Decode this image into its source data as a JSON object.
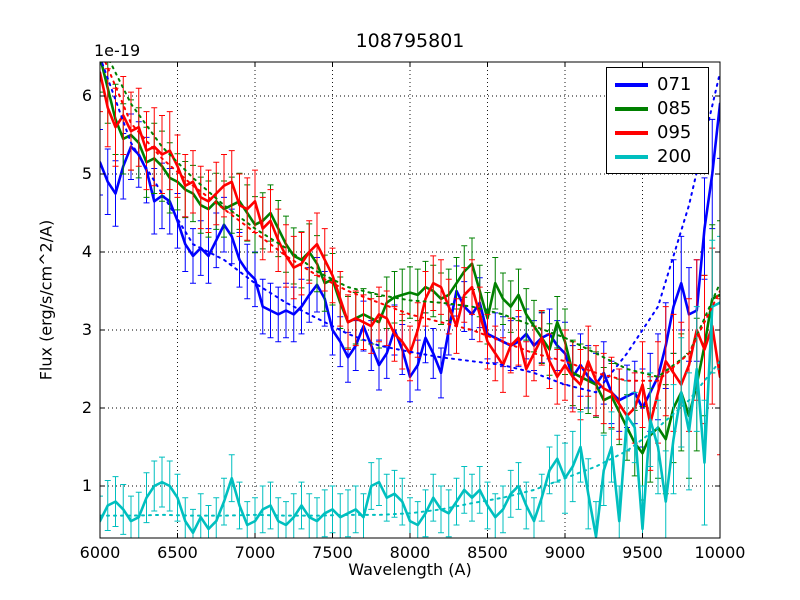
{
  "chart_data": {
    "type": "line",
    "title": "108795801",
    "xlabel": "Wavelength (A)",
    "ylabel": "Flux (erg/s/cm^2/A)",
    "y_offset_text": "1e-19",
    "xlim": [
      6000,
      10000
    ],
    "ylim": [
      0.33,
      6.44
    ],
    "xticks": [
      6000,
      6500,
      7000,
      7500,
      8000,
      8500,
      9000,
      9500,
      10000
    ],
    "yticks": [
      1,
      2,
      3,
      4,
      5,
      6
    ],
    "grid": true,
    "grid_style": "dotted",
    "legend_position": "upper right",
    "x": [
      6000,
      6050,
      6100,
      6150,
      6200,
      6250,
      6300,
      6350,
      6400,
      6450,
      6500,
      6550,
      6600,
      6650,
      6700,
      6750,
      6800,
      6850,
      6900,
      6950,
      7000,
      7050,
      7100,
      7150,
      7200,
      7250,
      7300,
      7350,
      7400,
      7450,
      7500,
      7550,
      7600,
      7650,
      7700,
      7750,
      7800,
      7850,
      7900,
      7950,
      8000,
      8050,
      8100,
      8150,
      8200,
      8250,
      8300,
      8350,
      8400,
      8450,
      8500,
      8550,
      8600,
      8650,
      8700,
      8750,
      8800,
      8850,
      8900,
      8950,
      9000,
      9050,
      9100,
      9150,
      9200,
      9250,
      9300,
      9350,
      9400,
      9450,
      9500,
      9550,
      9600,
      9650,
      9700,
      9750,
      9800,
      9850,
      9900,
      9950,
      10000
    ],
    "series": [
      {
        "name": "071",
        "color": "#0000ff",
        "values": [
          5.15,
          4.9,
          4.75,
          5.1,
          5.35,
          5.25,
          5.05,
          4.65,
          4.72,
          4.65,
          4.4,
          4.1,
          3.95,
          4.05,
          3.95,
          4.15,
          4.35,
          4.2,
          3.9,
          3.75,
          3.65,
          3.3,
          3.25,
          3.2,
          3.25,
          3.2,
          3.3,
          3.45,
          3.58,
          3.4,
          3.0,
          2.85,
          2.65,
          2.8,
          3.05,
          2.8,
          2.55,
          2.7,
          3.0,
          2.75,
          2.4,
          2.55,
          2.9,
          2.7,
          2.45,
          3.0,
          3.5,
          3.3,
          3.2,
          3.35,
          2.95,
          2.9,
          2.85,
          2.8,
          2.85,
          2.95,
          2.8,
          2.9,
          2.95,
          2.8,
          2.7,
          2.4,
          2.55,
          2.4,
          2.3,
          2.45,
          2.2,
          2.1,
          2.15,
          2.2,
          2.0,
          2.2,
          2.4,
          2.8,
          3.3,
          3.6,
          3.2,
          3.25,
          4.3,
          5.0,
          5.9
        ],
        "err": [
          0.42,
          0.42,
          0.42,
          0.42,
          0.42,
          0.42,
          0.42,
          0.42,
          0.42,
          0.42,
          0.35,
          0.35,
          0.35,
          0.35,
          0.35,
          0.35,
          0.35,
          0.35,
          0.35,
          0.35,
          0.35,
          0.35,
          0.35,
          0.35,
          0.35,
          0.35,
          0.35,
          0.35,
          0.35,
          0.35,
          0.32,
          0.32,
          0.32,
          0.32,
          0.32,
          0.32,
          0.32,
          0.32,
          0.32,
          0.32,
          0.32,
          0.32,
          0.32,
          0.32,
          0.32,
          0.32,
          0.32,
          0.32,
          0.32,
          0.32,
          0.32,
          0.32,
          0.32,
          0.32,
          0.32,
          0.32,
          0.32,
          0.32,
          0.32,
          0.32,
          0.4,
          0.4,
          0.4,
          0.4,
          0.4,
          0.4,
          0.4,
          0.4,
          0.4,
          0.4,
          0.5,
          0.5,
          0.55,
          0.55,
          0.6,
          0.6,
          0.6,
          0.65,
          0.65,
          0.7,
          0.7
        ]
      },
      {
        "name": "085",
        "color": "#008000",
        "values": [
          6.5,
          6.1,
          5.7,
          5.45,
          5.5,
          5.4,
          5.15,
          5.2,
          5.1,
          4.95,
          4.9,
          4.8,
          4.75,
          4.6,
          4.55,
          4.65,
          4.55,
          4.6,
          4.65,
          4.5,
          4.35,
          4.4,
          4.5,
          4.3,
          4.1,
          3.95,
          3.9,
          4.0,
          3.85,
          3.6,
          3.65,
          3.35,
          3.1,
          3.15,
          3.2,
          3.15,
          3.1,
          3.35,
          3.42,
          3.45,
          3.48,
          3.45,
          3.55,
          3.5,
          3.4,
          3.45,
          3.6,
          3.75,
          3.85,
          3.5,
          3.15,
          3.6,
          3.4,
          3.3,
          3.45,
          3.2,
          3.05,
          2.9,
          2.75,
          3.1,
          2.85,
          2.45,
          2.4,
          2.35,
          2.3,
          2.1,
          2.15,
          1.95,
          1.75,
          1.55,
          1.42,
          1.65,
          1.75,
          1.6,
          2.0,
          2.2,
          1.9,
          2.3,
          2.8,
          3.4,
          3.45
        ],
        "err": [
          0.45,
          0.45,
          0.45,
          0.45,
          0.45,
          0.45,
          0.45,
          0.45,
          0.45,
          0.45,
          0.36,
          0.36,
          0.36,
          0.36,
          0.36,
          0.36,
          0.36,
          0.36,
          0.36,
          0.36,
          0.36,
          0.36,
          0.36,
          0.36,
          0.36,
          0.36,
          0.36,
          0.36,
          0.36,
          0.36,
          0.33,
          0.33,
          0.33,
          0.33,
          0.33,
          0.33,
          0.33,
          0.33,
          0.33,
          0.33,
          0.33,
          0.33,
          0.33,
          0.33,
          0.33,
          0.33,
          0.33,
          0.33,
          0.33,
          0.33,
          0.33,
          0.33,
          0.33,
          0.33,
          0.33,
          0.33,
          0.33,
          0.33,
          0.33,
          0.33,
          0.42,
          0.42,
          0.42,
          0.42,
          0.42,
          0.42,
          0.42,
          0.42,
          0.42,
          0.42,
          0.6,
          0.6,
          0.65,
          0.7,
          0.7,
          0.75,
          0.8,
          0.85,
          0.9,
          0.95,
          0.95
        ]
      },
      {
        "name": "095",
        "color": "#ff0000",
        "values": [
          6.3,
          5.85,
          5.6,
          5.75,
          5.55,
          5.6,
          5.3,
          5.35,
          5.25,
          5.3,
          5.1,
          4.85,
          4.9,
          4.7,
          4.65,
          4.75,
          4.85,
          4.9,
          4.6,
          4.55,
          4.65,
          4.3,
          4.4,
          4.15,
          3.95,
          3.8,
          3.85,
          4.0,
          4.1,
          3.9,
          3.7,
          3.4,
          3.1,
          3.15,
          3.1,
          3.05,
          3.2,
          3.15,
          2.95,
          2.85,
          2.7,
          3.0,
          3.4,
          3.6,
          3.55,
          3.3,
          3.05,
          3.45,
          3.55,
          3.2,
          2.85,
          2.7,
          2.55,
          2.8,
          2.9,
          2.5,
          2.7,
          2.9,
          2.6,
          2.4,
          2.55,
          2.4,
          2.3,
          2.6,
          2.35,
          2.25,
          2.2,
          2.05,
          1.9,
          2.0,
          2.3,
          1.8,
          2.2,
          2.6,
          2.45,
          2.3,
          2.55,
          3.0,
          2.75,
          3.05,
          2.4
        ],
        "err": [
          0.5,
          0.5,
          0.5,
          0.5,
          0.5,
          0.5,
          0.5,
          0.5,
          0.5,
          0.5,
          0.4,
          0.4,
          0.4,
          0.4,
          0.4,
          0.4,
          0.4,
          0.4,
          0.4,
          0.4,
          0.4,
          0.4,
          0.4,
          0.4,
          0.4,
          0.4,
          0.4,
          0.4,
          0.4,
          0.4,
          0.35,
          0.35,
          0.35,
          0.35,
          0.35,
          0.35,
          0.35,
          0.35,
          0.35,
          0.35,
          0.35,
          0.35,
          0.35,
          0.35,
          0.35,
          0.35,
          0.35,
          0.35,
          0.35,
          0.35,
          0.35,
          0.35,
          0.35,
          0.35,
          0.35,
          0.35,
          0.35,
          0.35,
          0.35,
          0.35,
          0.45,
          0.45,
          0.45,
          0.45,
          0.45,
          0.45,
          0.45,
          0.45,
          0.45,
          0.45,
          0.55,
          0.6,
          0.65,
          0.7,
          0.75,
          0.8,
          0.85,
          0.9,
          0.95,
          1.0,
          1.0
        ]
      },
      {
        "name": "200",
        "color": "#00bfbf",
        "values": [
          0.55,
          0.75,
          0.8,
          0.7,
          0.55,
          0.6,
          0.85,
          1.0,
          1.05,
          1.0,
          0.85,
          0.55,
          0.4,
          0.6,
          0.45,
          0.55,
          0.8,
          1.1,
          0.75,
          0.5,
          0.55,
          0.7,
          0.75,
          0.55,
          0.5,
          0.6,
          0.75,
          0.6,
          0.55,
          0.65,
          0.7,
          0.6,
          0.65,
          0.7,
          0.6,
          1.0,
          1.05,
          0.85,
          0.9,
          0.8,
          0.55,
          0.5,
          0.65,
          0.85,
          0.7,
          0.65,
          0.8,
          0.95,
          0.85,
          0.95,
          0.75,
          0.6,
          0.7,
          0.9,
          1.0,
          0.75,
          0.55,
          0.85,
          1.2,
          1.35,
          1.1,
          1.25,
          1.5,
          0.9,
          0.35,
          1.2,
          1.5,
          0.55,
          1.9,
          1.75,
          0.45,
          1.85,
          1.5,
          0.8,
          1.6,
          2.2,
          1.7,
          2.5,
          1.3,
          3.3,
          3.35
        ],
        "err": [
          0.32,
          0.32,
          0.32,
          0.32,
          0.32,
          0.32,
          0.32,
          0.32,
          0.32,
          0.32,
          0.3,
          0.3,
          0.3,
          0.3,
          0.3,
          0.3,
          0.3,
          0.3,
          0.3,
          0.3,
          0.3,
          0.3,
          0.3,
          0.3,
          0.3,
          0.3,
          0.3,
          0.3,
          0.3,
          0.3,
          0.3,
          0.3,
          0.3,
          0.3,
          0.3,
          0.3,
          0.3,
          0.3,
          0.3,
          0.3,
          0.3,
          0.3,
          0.3,
          0.3,
          0.3,
          0.3,
          0.3,
          0.3,
          0.3,
          0.3,
          0.3,
          0.3,
          0.3,
          0.3,
          0.3,
          0.3,
          0.3,
          0.3,
          0.3,
          0.3,
          0.45,
          0.45,
          0.45,
          0.45,
          0.45,
          0.45,
          0.45,
          0.45,
          0.45,
          0.45,
          0.55,
          0.6,
          0.6,
          0.65,
          0.7,
          0.7,
          0.75,
          0.8,
          0.8,
          0.85,
          0.85
        ]
      }
    ],
    "smoothed_series": [
      {
        "name": "071 smoothed",
        "color": "#0000ff",
        "style": "dotted",
        "x": [
          6000,
          6200,
          6400,
          6600,
          6800,
          7000,
          7200,
          7400,
          7600,
          7800,
          8000,
          8200,
          8400,
          8600,
          8800,
          9000,
          9200,
          9400,
          9600,
          9800,
          10000
        ],
        "values": [
          6.5,
          5.4,
          4.75,
          4.1,
          3.9,
          3.6,
          3.35,
          3.15,
          2.95,
          2.8,
          2.72,
          2.65,
          2.6,
          2.55,
          2.45,
          2.3,
          2.2,
          2.7,
          3.3,
          4.6,
          6.3
        ]
      },
      {
        "name": "085 smoothed",
        "color": "#008000",
        "style": "dotted",
        "x": [
          6000,
          6200,
          6400,
          6600,
          6800,
          7000,
          7200,
          7400,
          7600,
          7800,
          8000,
          8200,
          8400,
          8600,
          8800,
          9000,
          9200,
          9400,
          9600,
          9800,
          10000
        ],
        "values": [
          6.7,
          5.9,
          5.35,
          4.95,
          4.6,
          4.3,
          4.05,
          3.75,
          3.55,
          3.45,
          3.38,
          3.35,
          3.3,
          3.2,
          3.05,
          2.9,
          2.7,
          2.5,
          2.4,
          2.7,
          3.6
        ]
      },
      {
        "name": "095 smoothed",
        "color": "#ff0000",
        "style": "dotted",
        "x": [
          6000,
          6200,
          6400,
          6600,
          6800,
          7000,
          7200,
          7400,
          7600,
          7800,
          8000,
          8200,
          8400,
          8600,
          8800,
          9000,
          9200,
          9400,
          9600,
          9800,
          10000
        ],
        "values": [
          6.6,
          5.65,
          5.2,
          4.85,
          4.55,
          4.25,
          3.95,
          3.7,
          3.5,
          3.35,
          3.2,
          3.1,
          3.0,
          2.85,
          2.7,
          2.6,
          2.45,
          2.35,
          2.35,
          2.7,
          3.5
        ]
      },
      {
        "name": "200 smoothed",
        "color": "#00bfbf",
        "style": "dotted",
        "x": [
          6000,
          6200,
          6400,
          6600,
          6800,
          7000,
          7200,
          7400,
          7600,
          7800,
          8000,
          8200,
          8400,
          8600,
          8800,
          9000,
          9200,
          9400,
          9600,
          9800,
          10000
        ],
        "values": [
          0.62,
          0.62,
          0.63,
          0.62,
          0.62,
          0.63,
          0.62,
          0.62,
          0.63,
          0.63,
          0.65,
          0.7,
          0.78,
          0.85,
          0.95,
          1.1,
          1.25,
          1.45,
          1.75,
          2.1,
          2.6
        ]
      }
    ]
  },
  "legend": {
    "items": [
      {
        "label": "071",
        "color": "#0000ff"
      },
      {
        "label": "085",
        "color": "#008000"
      },
      {
        "label": "095",
        "color": "#ff0000"
      },
      {
        "label": "200",
        "color": "#00bfbf"
      }
    ]
  }
}
